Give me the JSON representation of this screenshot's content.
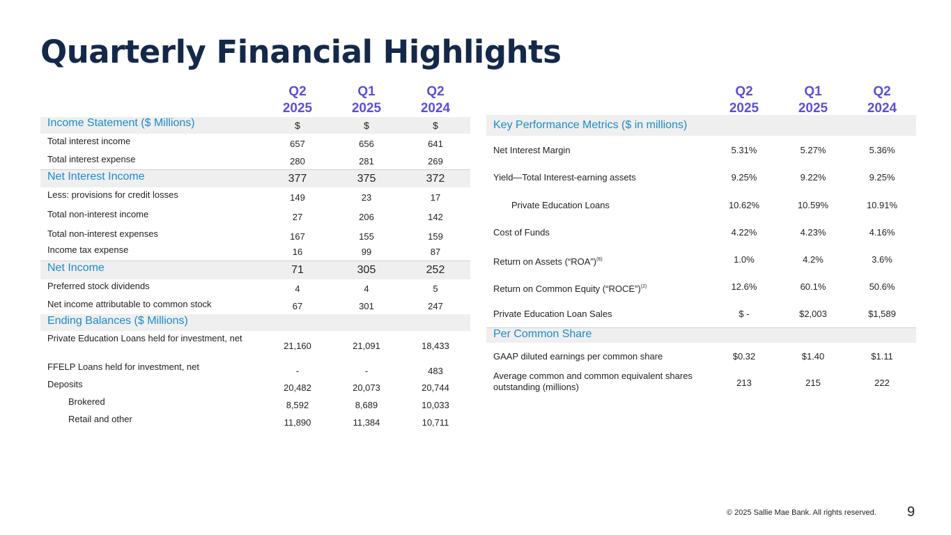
{
  "title": "Quarterly Financial Highlights",
  "left": {
    "headers": [
      "Q2\n2025",
      "Q1\n2025",
      "Q2\n2024"
    ],
    "rows": [
      {
        "label": "Income Statement ($ Millions)",
        "v": [
          "$",
          "$",
          "$"
        ]
      },
      {
        "label": "Total interest income",
        "v": [
          "657",
          "656",
          "641"
        ]
      },
      {
        "label": "Total interest expense",
        "v": [
          "280",
          "281",
          "269"
        ]
      },
      {
        "label": "Net Interest Income",
        "v": [
          "377",
          "375",
          "372"
        ]
      },
      {
        "label": "Less: provisions for credit losses",
        "v": [
          "149",
          "23",
          "17"
        ]
      },
      {
        "label": "Total non-interest income",
        "v": [
          "27",
          "206",
          "142"
        ]
      },
      {
        "label": "Total non-interest expenses",
        "v": [
          "167",
          "155",
          "159"
        ]
      },
      {
        "label": "Income tax expense",
        "v": [
          "16",
          "99",
          "87"
        ]
      },
      {
        "label": "Net Income",
        "v": [
          "71",
          "305",
          "252"
        ]
      },
      {
        "label": "Preferred stock dividends",
        "v": [
          "4",
          "4",
          "5"
        ]
      },
      {
        "label": "Net income attributable to common stock",
        "v": [
          "67",
          "301",
          "247"
        ]
      },
      {
        "label": "Ending Balances ($ Millions)",
        "v": [
          "",
          "",
          ""
        ]
      },
      {
        "label": "Private Education Loans held for investment, net",
        "v": [
          "21,160",
          "21,091",
          "18,433"
        ]
      },
      {
        "label": "FFELP Loans held for investment, net",
        "v": [
          "-",
          "-",
          "483"
        ]
      },
      {
        "label": "Deposits",
        "v": [
          "20,482",
          "20,073",
          "20,744"
        ]
      },
      {
        "label": "Brokered",
        "v": [
          "8,592",
          "8,689",
          "10,033"
        ]
      },
      {
        "label": "Retail and other",
        "v": [
          "11,890",
          "11,384",
          "10,711"
        ]
      }
    ]
  },
  "right": {
    "headers": [
      "Q2\n2025",
      "Q1\n2025",
      "Q2\n2024"
    ],
    "rows": [
      {
        "label": "Key Performance Metrics ($ in millions)",
        "v": [
          "",
          "",
          ""
        ]
      },
      {
        "label": "Net Interest Margin",
        "v": [
          "5.31%",
          "5.27%",
          "5.36%"
        ]
      },
      {
        "label": "Yield—Total Interest-earning assets",
        "v": [
          "9.25%",
          "9.22%",
          "9.25%"
        ]
      },
      {
        "label": "Private Education Loans",
        "v": [
          "10.62%",
          "10.59%",
          "10.91%"
        ]
      },
      {
        "label": "Cost of Funds",
        "v": [
          "4.22%",
          "4.23%",
          "4.16%"
        ]
      },
      {
        "label": "Return on Assets (“ROA”)",
        "sup": "(6)",
        "v": [
          "1.0%",
          "4.2%",
          "3.6%"
        ]
      },
      {
        "label": "Return on Common Equity (“ROCE”)",
        "sup": "(2)",
        "v": [
          "12.6%",
          "60.1%",
          "50.6%"
        ]
      },
      {
        "label": "Private Education Loan Sales",
        "v": [
          "$ -",
          "$2,003",
          "$1,589"
        ]
      },
      {
        "label": "Per Common Share",
        "v": [
          "",
          "",
          ""
        ]
      },
      {
        "label": "GAAP diluted earnings per common share",
        "v": [
          "$0.32",
          "$1.40",
          "$1.11"
        ]
      },
      {
        "label": "Average common and common equivalent shares outstanding (millions)",
        "v": [
          "213",
          "215",
          "222"
        ]
      }
    ]
  },
  "footer": "© 2025 Sallie Mae Bank. All rights reserved.",
  "page_number": "9"
}
